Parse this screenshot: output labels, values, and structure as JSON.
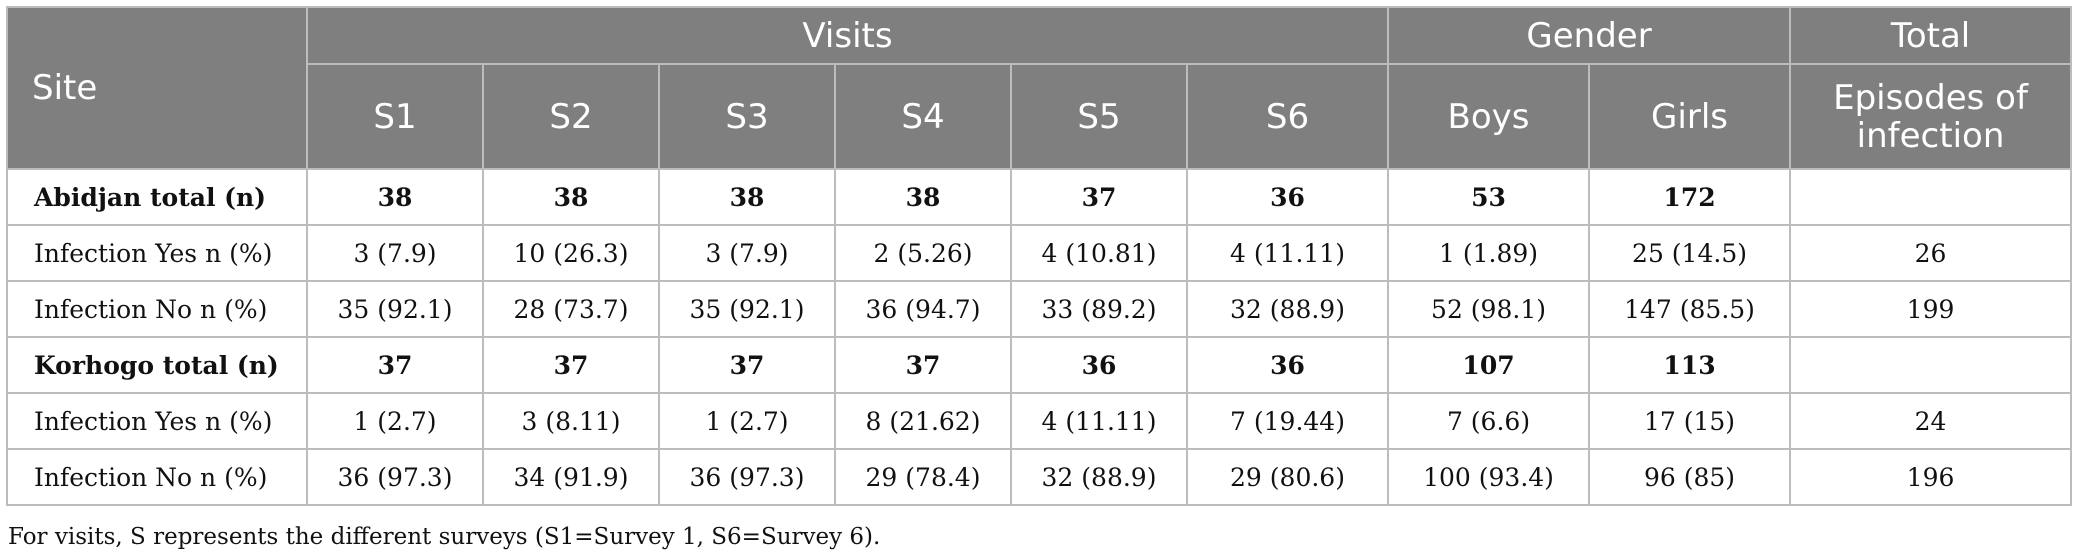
{
  "header": {
    "site": "Site",
    "visits": "Visits",
    "gender": "Gender",
    "total": "Total",
    "visit_cols": [
      "S1",
      "S2",
      "S3",
      "S4",
      "S5",
      "S6"
    ],
    "gender_cols": [
      "Boys",
      "Girls"
    ],
    "total_col": "Episodes of infection"
  },
  "rows": [
    {
      "label": "Abidjan total (n)",
      "total": true,
      "cells": [
        "38",
        "38",
        "38",
        "38",
        "37",
        "36",
        "53",
        "172",
        ""
      ]
    },
    {
      "label": "Infection Yes n (%)",
      "total": false,
      "cells": [
        "3 (7.9)",
        "10 (26.3)",
        "3 (7.9)",
        "2 (5.26)",
        "4 (10.81)",
        "4 (11.11)",
        "1 (1.89)",
        "25 (14.5)",
        "26"
      ]
    },
    {
      "label": "Infection No n (%)",
      "total": false,
      "cells": [
        "35 (92.1)",
        "28 (73.7)",
        "35 (92.1)",
        "36 (94.7)",
        "33 (89.2)",
        "32 (88.9)",
        "52 (98.1)",
        "147 (85.5)",
        "199"
      ]
    },
    {
      "label": "Korhogo total (n)",
      "total": true,
      "cells": [
        "37",
        "37",
        "37",
        "37",
        "36",
        "36",
        "107",
        "113",
        ""
      ]
    },
    {
      "label": "Infection Yes n (%)",
      "total": false,
      "cells": [
        "1 (2.7)",
        "3 (8.11)",
        "1 (2.7)",
        "8 (21.62)",
        "4 (11.11)",
        "7 (19.44)",
        "7 (6.6)",
        "17 (15)",
        "24"
      ]
    },
    {
      "label": "Infection No n (%)",
      "total": false,
      "cells": [
        "36 (97.3)",
        "34 (91.9)",
        "36 (97.3)",
        "29 (78.4)",
        "32 (88.9)",
        "29 (80.6)",
        "100 (93.4)",
        "96 (85)",
        "196"
      ]
    }
  ],
  "footnote": "For visits, S represents the different surveys (S1=Survey 1, S6=Survey 6)."
}
